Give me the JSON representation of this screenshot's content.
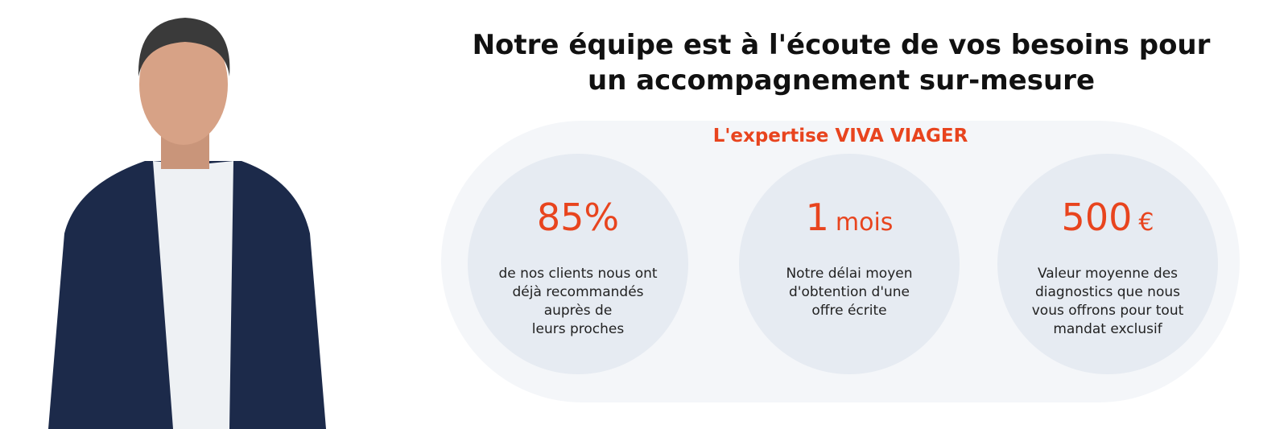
{
  "header": {
    "title": "Notre équipe est à l'écoute de vos besoins pour un accompagnement sur-mesure",
    "subtitle": "L'expertise VIVA VIAGER"
  },
  "stats": [
    {
      "figure": "85%",
      "lines": [
        "de nos clients nous ont",
        "déjà recommandés",
        "auprès de",
        "leurs proches"
      ]
    },
    {
      "figure": "1",
      "unit": "mois",
      "lines": [
        "Notre délai moyen",
        "d'obtention d'une",
        "offre écrite"
      ]
    },
    {
      "figure": "500",
      "unit": "€",
      "lines": [
        "Valeur moyenne des",
        "diagnostics que nous",
        "vous offrons pour tout",
        "mandat exclusif"
      ]
    }
  ]
}
